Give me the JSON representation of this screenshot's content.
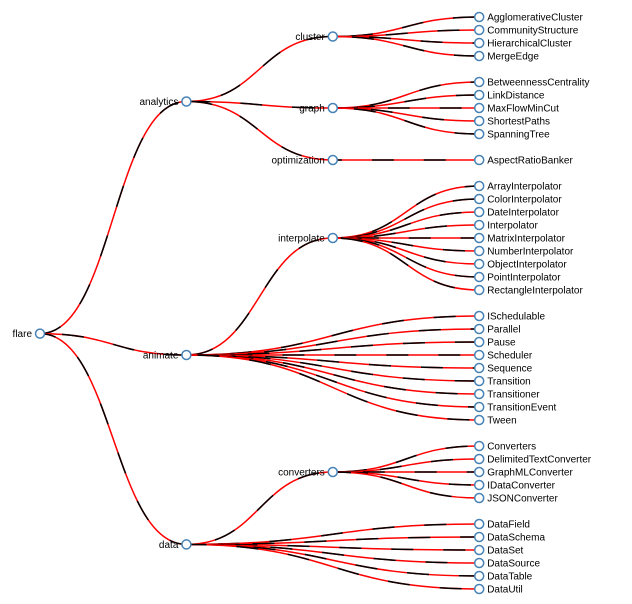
{
  "colors": {
    "link_primary": "#ff0000",
    "link_secondary": "#000000",
    "node_stroke": "#4682b4",
    "node_fill": "#ffffff"
  },
  "tree": {
    "name": "flare",
    "children": [
      {
        "name": "analytics",
        "children": [
          {
            "name": "cluster",
            "children": [
              {
                "name": "AgglomerativeCluster"
              },
              {
                "name": "CommunityStructure"
              },
              {
                "name": "HierarchicalCluster"
              },
              {
                "name": "MergeEdge"
              }
            ]
          },
          {
            "name": "graph",
            "children": [
              {
                "name": "BetweennessCentrality"
              },
              {
                "name": "LinkDistance"
              },
              {
                "name": "MaxFlowMinCut"
              },
              {
                "name": "ShortestPaths"
              },
              {
                "name": "SpanningTree"
              }
            ]
          },
          {
            "name": "optimization",
            "children": [
              {
                "name": "AspectRatioBanker"
              }
            ]
          }
        ]
      },
      {
        "name": "animate",
        "children": [
          {
            "name": "interpolate",
            "children": [
              {
                "name": "ArrayInterpolator"
              },
              {
                "name": "ColorInterpolator"
              },
              {
                "name": "DateInterpolator"
              },
              {
                "name": "Interpolator"
              },
              {
                "name": "MatrixInterpolator"
              },
              {
                "name": "NumberInterpolator"
              },
              {
                "name": "ObjectInterpolator"
              },
              {
                "name": "PointInterpolator"
              },
              {
                "name": "RectangleInterpolator"
              }
            ]
          },
          {
            "name": "ISchedulable"
          },
          {
            "name": "Parallel"
          },
          {
            "name": "Pause"
          },
          {
            "name": "Scheduler"
          },
          {
            "name": "Sequence"
          },
          {
            "name": "Transition"
          },
          {
            "name": "Transitioner"
          },
          {
            "name": "TransitionEvent"
          },
          {
            "name": "Tween"
          }
        ]
      },
      {
        "name": "data",
        "children": [
          {
            "name": "converters",
            "children": [
              {
                "name": "Converters"
              },
              {
                "name": "DelimitedTextConverter"
              },
              {
                "name": "GraphMLConverter"
              },
              {
                "name": "IDataConverter"
              },
              {
                "name": "JSONConverter"
              }
            ]
          },
          {
            "name": "DataField"
          },
          {
            "name": "DataSchema"
          },
          {
            "name": "DataSet"
          },
          {
            "name": "DataSource"
          },
          {
            "name": "DataTable"
          },
          {
            "name": "DataUtil"
          }
        ]
      }
    ]
  }
}
